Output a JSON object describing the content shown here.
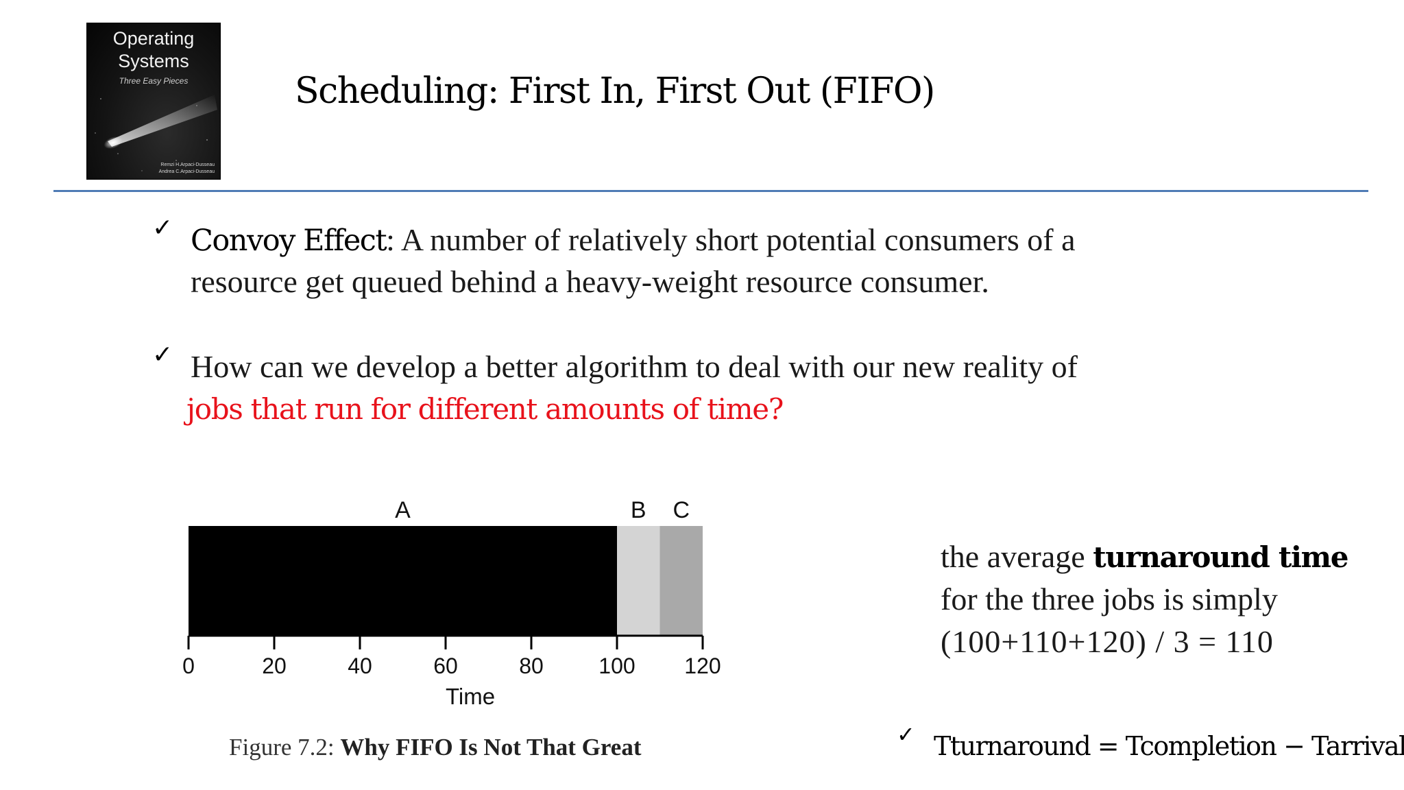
{
  "cover": {
    "title_line1": "Operating",
    "title_line2": "Systems",
    "subtitle": "Three Easy Pieces",
    "author1": "Remzi H.Arpaci-Dusseau",
    "author2": "Andrea C.Arpaci-Dusseau"
  },
  "title": "Scheduling: First In, First Out (FIFO)",
  "bullets": [
    {
      "term": "Convoy Effect",
      "line1_rest": ": A number of relatively short potential consumers of a",
      "line2": "resource get queued behind a heavy-weight resource consumer."
    },
    {
      "line1": "How can we develop a better algorithm to deal with our new reality of",
      "line2_highlight": "jobs that run for different amounts of time?"
    }
  ],
  "highlight_color": "#e8121b",
  "rule_color": "#4f7bb5",
  "check_glyph": "✓",
  "chart_data": {
    "type": "bar",
    "orientation": "horizontal-timeline",
    "jobs": [
      {
        "name": "A",
        "start": 0,
        "end": 100,
        "color": "#000000"
      },
      {
        "name": "B",
        "start": 100,
        "end": 110,
        "color": "#d4d4d4"
      },
      {
        "name": "C",
        "start": 110,
        "end": 120,
        "color": "#a9a9a9"
      }
    ],
    "xlabel": "Time",
    "xlim": [
      0,
      120
    ],
    "xticks": [
      0,
      20,
      40,
      60,
      80,
      100,
      120
    ],
    "grid": false
  },
  "caption": {
    "prefix": "Figure 7.2: ",
    "bold": "Why FIFO Is Not That Great"
  },
  "right_text": {
    "line1_pre": "the average ",
    "line1_bold": "turnaround time",
    "line2": "for the three jobs is simply",
    "line3": "(100+110+120) / 3 = 110"
  },
  "formula": "Tturnaround = Tcompletion − Tarrival"
}
